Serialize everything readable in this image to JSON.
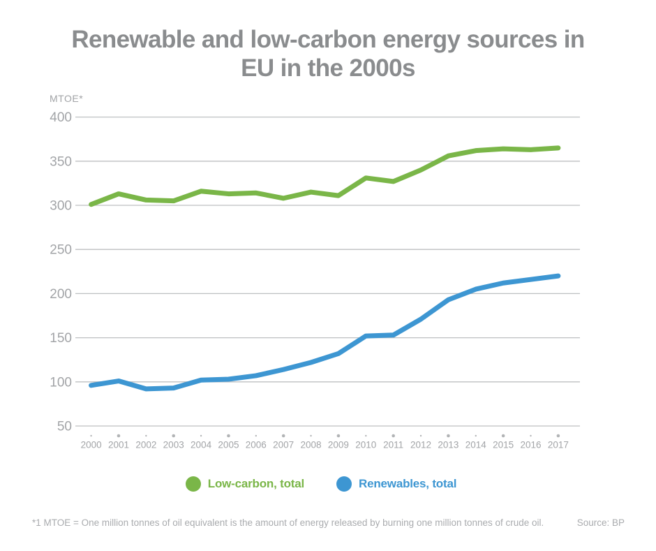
{
  "title": {
    "lines": [
      "Renewable and low-carbon energy sources in",
      "EU in the 2000s"
    ]
  },
  "y_axis": {
    "unit_label": "MTOE*"
  },
  "legend": {
    "items": [
      {
        "label": "Low-carbon, total",
        "color": "#7ab648"
      },
      {
        "label": "Renewables, total",
        "color": "#3d96d2"
      }
    ]
  },
  "footer": {
    "note": "*1 MTOE = One million tonnes of oil equivalent is the amount of energy released by burning one million tonnes of crude oil.",
    "source": "Source: BP"
  },
  "colors": {
    "background": "#ffffff",
    "title_text": "#8a8c8e",
    "axis_text": "#a2a4a7",
    "gridline": "#bdbfc1",
    "tick_dot": "#b2b4b6",
    "low_carbon": "#7ab648",
    "renewables": "#3d96d2"
  },
  "chart_data": {
    "type": "line",
    "title": "Renewable and low-carbon energy sources in EU in the 2000s",
    "xlabel": "",
    "ylabel": "MTOE*",
    "x": [
      2000,
      2001,
      2002,
      2003,
      2004,
      2005,
      2006,
      2007,
      2008,
      2009,
      2010,
      2011,
      2012,
      2013,
      2014,
      2015,
      2016,
      2017
    ],
    "series": [
      {
        "name": "Low-carbon, total",
        "color": "#7ab648",
        "values": [
          301,
          313,
          306,
          305,
          316,
          313,
          314,
          308,
          315,
          311,
          331,
          327,
          340,
          356,
          362,
          364,
          363,
          365
        ]
      },
      {
        "name": "Renewables, total",
        "color": "#3d96d2",
        "values": [
          96,
          101,
          92,
          93,
          102,
          103,
          107,
          114,
          122,
          132,
          152,
          153,
          171,
          193,
          205,
          212,
          216,
          220
        ]
      }
    ],
    "ylim": [
      50,
      400
    ],
    "yticks": [
      50,
      100,
      150,
      200,
      250,
      300,
      350,
      400
    ],
    "grid": true,
    "legend_position": "bottom"
  }
}
